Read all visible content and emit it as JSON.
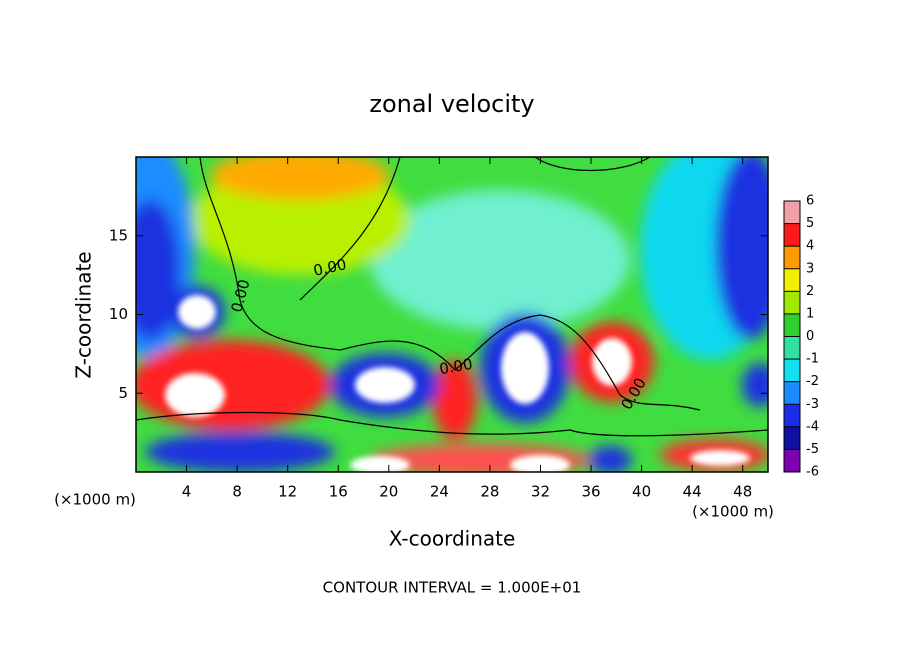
{
  "chart_data": {
    "type": "contour",
    "title": "zonal velocity",
    "x_label": "X-coordinate",
    "y_label": "Z-coordinate",
    "x_unit": "(×1000 m)",
    "y_unit": "(×1000 m)",
    "xlim": [
      0,
      50
    ],
    "xticks": [
      4,
      8,
      12,
      16,
      20,
      24,
      28,
      32,
      36,
      40,
      44,
      48
    ],
    "ylim": [
      0,
      20
    ],
    "yticks": [
      5,
      10,
      15
    ],
    "colorbar_ticks": [
      -6,
      -5,
      -4,
      -3,
      -2,
      -1,
      0,
      1,
      2,
      3,
      4,
      5,
      6
    ],
    "colorbar_colors": [
      "#7a00b0",
      "#1010a0",
      "#1a2ee8",
      "#1a8cff",
      "#10e0f0",
      "#30e0a0",
      "#30d030",
      "#a0e800",
      "#f0f000",
      "#ff9a00",
      "#ff1a1a",
      "#f2a0a8"
    ],
    "contour_labels": [
      "0.00",
      "0.00",
      "0.00",
      "0.00"
    ],
    "annotation": "CONTOUR INTERVAL = 1.000E+01"
  }
}
